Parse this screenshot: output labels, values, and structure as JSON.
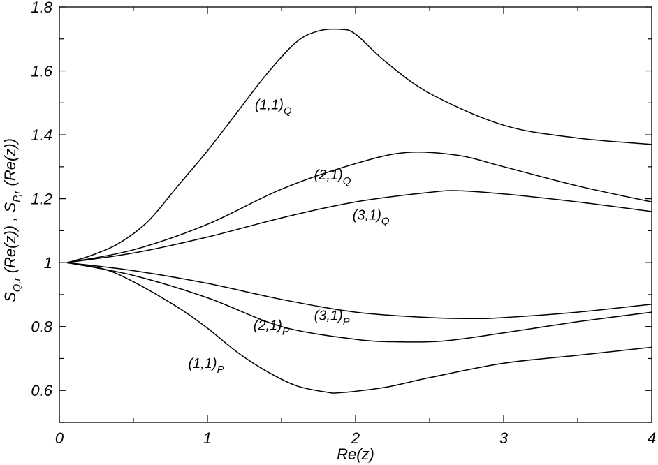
{
  "chart_data": {
    "type": "line",
    "title": "",
    "xlabel": "Re(z)",
    "ylabel": {
      "left": {
        "main": "S",
        "sub": "Q,r",
        "tail": "(Re(z)) ,"
      },
      "right": {
        "main": "S",
        "sub": "P,r",
        "tail": "(Re(z))"
      }
    },
    "xlim": [
      0,
      4
    ],
    "ylim": [
      0.5,
      1.8
    ],
    "xticks": [
      "0",
      "1",
      "2",
      "3",
      "4"
    ],
    "yticks": [
      "0.6",
      "0.8",
      "1",
      "1.2",
      "1.4",
      "1.6",
      "1.8"
    ],
    "xtick_values": [
      0,
      1,
      2,
      3,
      4
    ],
    "ytick_values": [
      0.6,
      0.8,
      1.0,
      1.2,
      1.4,
      1.6,
      1.8
    ],
    "grid": false,
    "line_color": "#000000",
    "series": [
      {
        "name": "(1,1)_Q",
        "label_main": "(1,1)",
        "label_sub": "Q",
        "label_at": [
          1.32,
          1.48
        ],
        "x": [
          0.05,
          0.2,
          0.4,
          0.6,
          0.8,
          1.0,
          1.2,
          1.4,
          1.6,
          1.75,
          1.9,
          2.0,
          2.2,
          2.5,
          3.0,
          3.5,
          4.0
        ],
        "y": [
          1.0,
          1.02,
          1.06,
          1.13,
          1.24,
          1.35,
          1.47,
          1.59,
          1.69,
          1.725,
          1.73,
          1.715,
          1.63,
          1.53,
          1.43,
          1.39,
          1.37
        ]
      },
      {
        "name": "(2,1)_Q",
        "label_main": "(2,1)",
        "label_sub": "Q",
        "label_at": [
          1.72,
          1.26
        ],
        "x": [
          0.05,
          0.5,
          1.0,
          1.5,
          2.0,
          2.35,
          2.7,
          3.0,
          3.5,
          4.0
        ],
        "y": [
          1.0,
          1.04,
          1.12,
          1.23,
          1.31,
          1.345,
          1.335,
          1.3,
          1.24,
          1.19
        ]
      },
      {
        "name": "(3,1)_Q",
        "label_main": "(3,1)",
        "label_sub": "Q",
        "label_at": [
          1.98,
          1.135
        ],
        "x": [
          0.05,
          0.5,
          1.0,
          1.5,
          2.0,
          2.5,
          2.7,
          3.0,
          3.5,
          4.0
        ],
        "y": [
          1.0,
          1.03,
          1.08,
          1.14,
          1.19,
          1.22,
          1.225,
          1.215,
          1.19,
          1.16
        ]
      },
      {
        "name": "(3,1)_P",
        "label_main": "(3,1)",
        "label_sub": "P",
        "label_at": [
          1.72,
          0.82
        ],
        "x": [
          0.05,
          0.5,
          1.0,
          1.5,
          2.0,
          2.5,
          2.8,
          3.0,
          3.5,
          4.0
        ],
        "y": [
          1.0,
          0.975,
          0.935,
          0.885,
          0.845,
          0.828,
          0.825,
          0.828,
          0.845,
          0.87
        ]
      },
      {
        "name": "(2,1)_P",
        "label_main": "(2,1)",
        "label_sub": "P",
        "label_at": [
          1.31,
          0.79
        ],
        "x": [
          0.05,
          0.5,
          1.0,
          1.5,
          2.0,
          2.3,
          2.6,
          3.0,
          3.5,
          4.0
        ],
        "y": [
          1.0,
          0.96,
          0.89,
          0.8,
          0.76,
          0.752,
          0.755,
          0.78,
          0.815,
          0.845
        ]
      },
      {
        "name": "(1,1)_P",
        "label_main": "(1,1)",
        "label_sub": "P",
        "label_at": [
          0.87,
          0.67
        ],
        "x": [
          0.05,
          0.3,
          0.5,
          0.8,
          1.0,
          1.2,
          1.4,
          1.6,
          1.8,
          1.9,
          2.2,
          2.5,
          3.0,
          3.5,
          4.0
        ],
        "y": [
          1.0,
          0.98,
          0.94,
          0.86,
          0.795,
          0.72,
          0.66,
          0.615,
          0.595,
          0.593,
          0.61,
          0.64,
          0.685,
          0.71,
          0.735
        ]
      }
    ]
  }
}
